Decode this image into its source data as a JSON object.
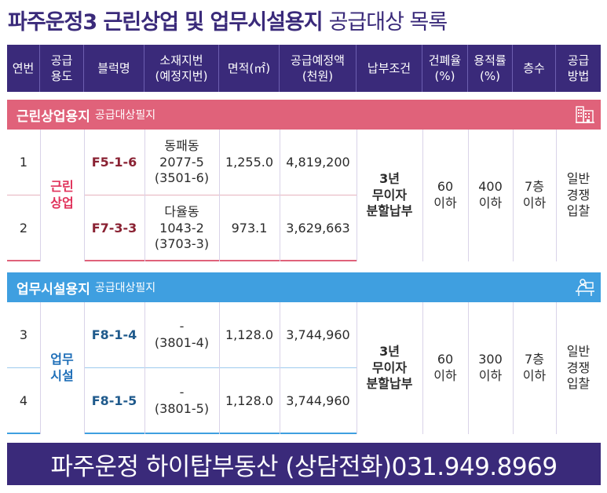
{
  "title": {
    "main": "파주운정3 근린상업 및 업무시설용지",
    "sub": "공급대상 목록"
  },
  "headers": [
    "연번",
    "공급\n용도",
    "블럭명",
    "소재지번\n(예정지번)",
    "면적(㎡)",
    "공급예정액\n(천원)",
    "납부조건",
    "건폐율\n(%)",
    "용적률\n(%)",
    "층수",
    "공급\n방법"
  ],
  "sections": {
    "retail": {
      "title": "근린상업용지",
      "subtitle": "공급대상필지",
      "icon": "building-icon",
      "use": "근린\n상업",
      "payment": "3년\n무이자\n분할납부",
      "coverage": "60\n이하",
      "far": "400\n이하",
      "floors": "7층\n이하",
      "method": "일반\n경쟁\n입찰",
      "rows": [
        {
          "no": "1",
          "block": "F5-1-6",
          "address": "동패동\n2077-5\n(3501-6)",
          "area": "1,255.0",
          "price": "4,819,200"
        },
        {
          "no": "2",
          "block": "F7-3-3",
          "address": "다율동\n1043-2\n(3703-3)",
          "area": "973.1",
          "price": "3,629,663"
        }
      ]
    },
    "office": {
      "title": "업무시설용지",
      "subtitle": "공급대상필지",
      "icon": "office-worker-icon",
      "use": "업무\n시설",
      "payment": "3년\n무이자\n분할납부",
      "coverage": "60\n이하",
      "far": "300\n이하",
      "floors": "7층\n이하",
      "method": "일반\n경쟁\n입찰",
      "rows": [
        {
          "no": "3",
          "block": "F8-1-4",
          "address": "-\n(3801-4)",
          "area": "1,128.0",
          "price": "3,744,960"
        },
        {
          "no": "4",
          "block": "F8-1-5",
          "address": "-\n(3801-5)",
          "area": "1,128.0",
          "price": "3,744,960"
        }
      ]
    }
  },
  "footer": "파주운정 하이탑부동산 (상담전화)031.949.8969",
  "colors": {
    "primary": "#3a2a7a",
    "retail": "#e0627a",
    "office": "#3f9fe0"
  }
}
